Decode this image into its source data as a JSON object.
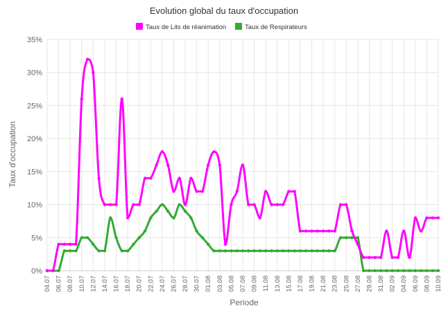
{
  "chart_data": {
    "type": "line",
    "title": "Evolution global du taux d'occupation",
    "xlabel": "Periode",
    "ylabel": "Taux d'occupation",
    "ylim": [
      0,
      35
    ],
    "y_ticks": [
      "0%",
      "5%",
      "10%",
      "15%",
      "20%",
      "25%",
      "30%",
      "35%"
    ],
    "grid": true,
    "legend_position": "top-center",
    "x_tick_labels": [
      "04.07",
      "06.07",
      "08.07",
      "10.07",
      "12.07",
      "14.07",
      "16.07",
      "18.07",
      "20.07",
      "22.07",
      "24.07",
      "26.07",
      "28.07",
      "30.07",
      "01.08",
      "03.08",
      "05.08",
      "07.08",
      "09.08",
      "11.08",
      "13.08",
      "15.08",
      "17.08",
      "19.08",
      "21.08",
      "23.08",
      "25.08",
      "27.08",
      "29.08",
      "31.08",
      "02.09",
      "04.09",
      "06.09",
      "08.09",
      "10.09"
    ],
    "series": [
      {
        "name": "Taux de Lits de réanimation",
        "color": "#ff00ff",
        "values": [
          0,
          0,
          4,
          4,
          4,
          4,
          26,
          32,
          30,
          14,
          10,
          10,
          10,
          26,
          8,
          10,
          10,
          14,
          14,
          16,
          18,
          16,
          12,
          14,
          10,
          14,
          12,
          12,
          16,
          18,
          16,
          4,
          10,
          12,
          16,
          10,
          10,
          8,
          12,
          10,
          10,
          10,
          12,
          12,
          6,
          6,
          6,
          6,
          6,
          6,
          6,
          10,
          10,
          6,
          4,
          2,
          2,
          2,
          2,
          6,
          2,
          2,
          6,
          2,
          8,
          6,
          8,
          8,
          8
        ]
      },
      {
        "name": "Taux de Respirateurs",
        "color": "#33aa33",
        "values": [
          0,
          0,
          0,
          3,
          3,
          3,
          5,
          5,
          4,
          3,
          3,
          8,
          5,
          3,
          3,
          4,
          5,
          6,
          8,
          9,
          10,
          9,
          8,
          10,
          9,
          8,
          6,
          5,
          4,
          3,
          3,
          3,
          3,
          3,
          3,
          3,
          3,
          3,
          3,
          3,
          3,
          3,
          3,
          3,
          3,
          3,
          3,
          3,
          3,
          3,
          3,
          5,
          5,
          5,
          5,
          0,
          0,
          0,
          0,
          0,
          0,
          0,
          0,
          0,
          0,
          0,
          0,
          0,
          0
        ]
      }
    ]
  }
}
